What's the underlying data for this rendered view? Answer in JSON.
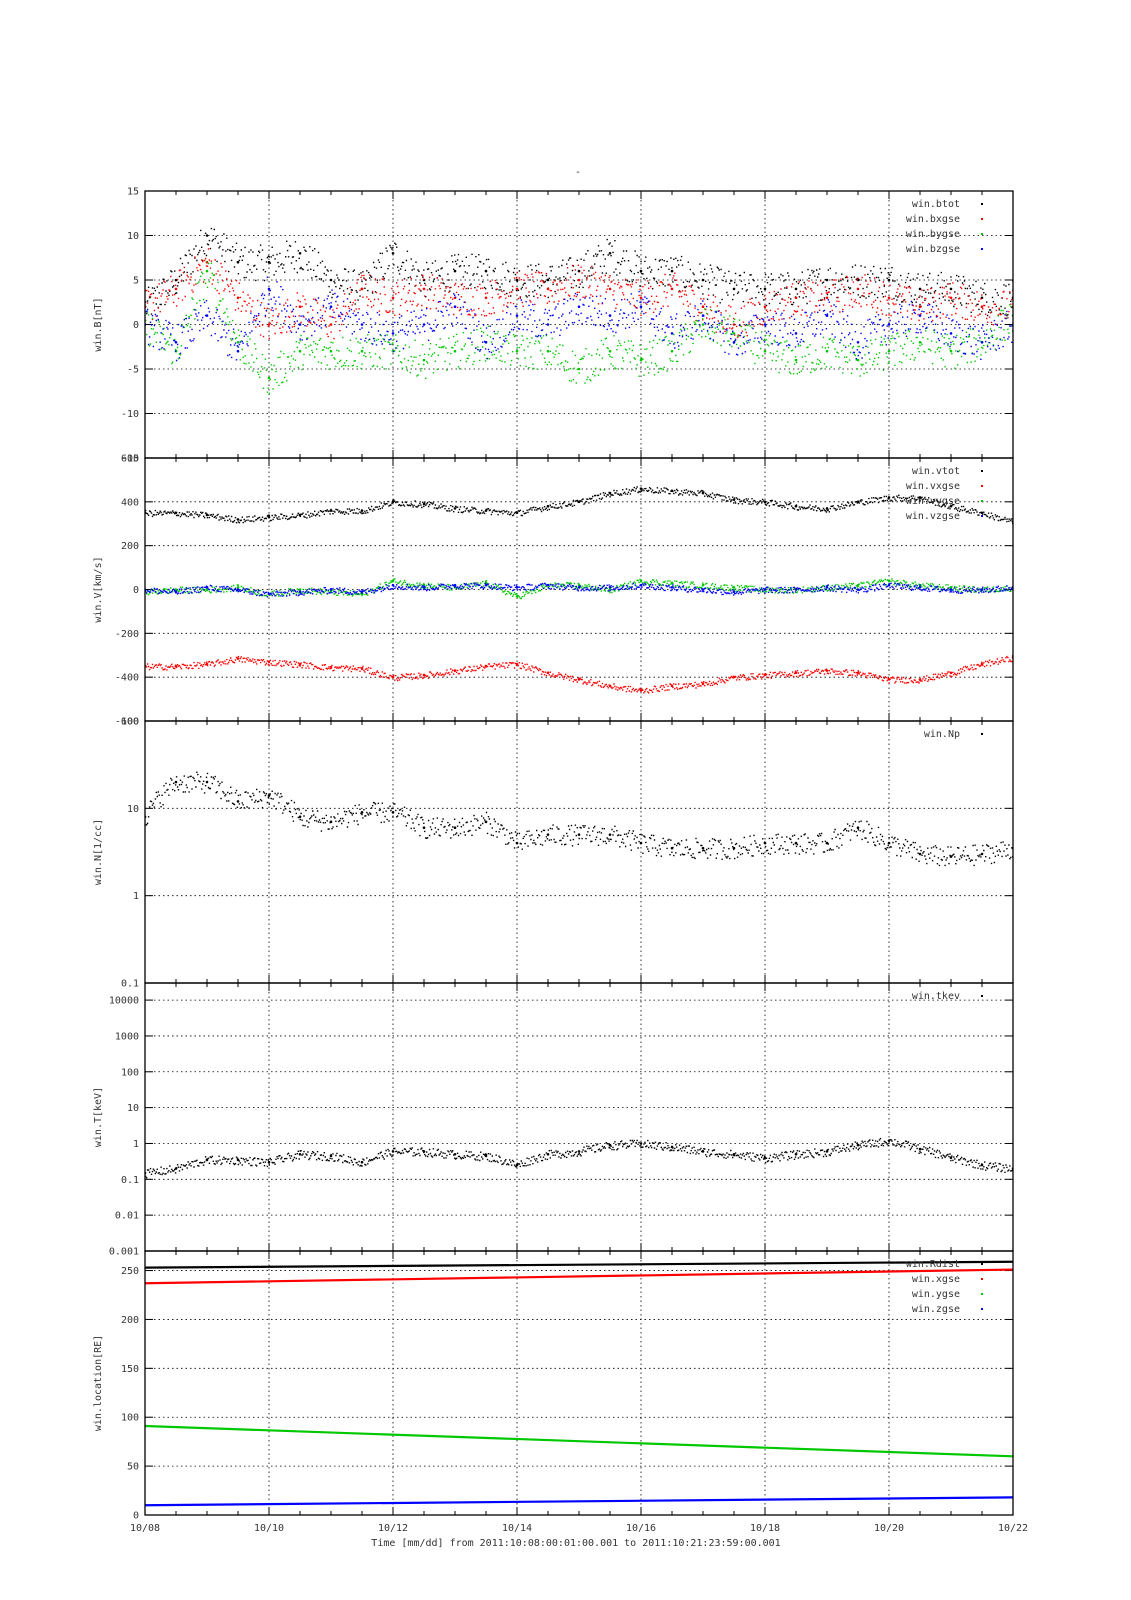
{
  "page_title": "-",
  "time_axis": {
    "tick_labels": [
      "10/08",
      "10/10",
      "10/12",
      "10/14",
      "10/16",
      "10/18",
      "10/20",
      "10/22"
    ],
    "label": "Time [mm/dd]  from 2011:10:08:00:01:00.001  to  2011:10:21:23:59:00.001"
  },
  "chart_data": [
    {
      "type": "scatter",
      "ylabel": "win.B[nT]",
      "ylim": [
        -15,
        15
      ],
      "yscale": "linear",
      "ytick_values": [
        -15,
        -10,
        -5,
        0,
        5,
        10,
        15
      ],
      "ytick_labels": [
        "-15",
        "-10",
        "-5",
        "0",
        "5",
        "10",
        "15"
      ],
      "x_range": [
        "10/08",
        "10/22"
      ],
      "grid": true,
      "legend_position": "top-right",
      "series": [
        {
          "name": "win.btot",
          "color": "#000000",
          "x": [
            0,
            0.5,
            1,
            1.5,
            2,
            2.5,
            3,
            3.5,
            4,
            4.5,
            5,
            5.5,
            6,
            6.5,
            7,
            7.5,
            8,
            8.5,
            9,
            9.5,
            10,
            10.5,
            11,
            11.5,
            12,
            12.5,
            13,
            13.5,
            14
          ],
          "y": [
            2,
            5,
            10,
            7,
            7,
            8,
            5,
            4,
            8,
            5,
            6,
            6,
            5,
            5,
            6,
            8,
            6,
            6,
            5,
            4,
            4,
            4,
            5,
            5,
            5,
            4,
            4,
            3,
            3
          ]
        },
        {
          "name": "win.bxgse",
          "color": "#ff0000",
          "x": [
            0,
            0.5,
            1,
            1.5,
            2,
            2.5,
            3,
            3.5,
            4,
            4.5,
            5,
            5.5,
            6,
            6.5,
            7,
            7.5,
            8,
            8.5,
            9,
            9.5,
            10,
            10.5,
            11,
            11.5,
            12,
            12.5,
            13,
            13.5,
            14
          ],
          "y": [
            2,
            4,
            7,
            3,
            0,
            2,
            0,
            4,
            3,
            4,
            3,
            3,
            4,
            4,
            5,
            4,
            3,
            4,
            2,
            0,
            2,
            3,
            3,
            4,
            3,
            2,
            3,
            2,
            2
          ]
        },
        {
          "name": "win.bygse",
          "color": "#00c800",
          "x": [
            0,
            0.5,
            1,
            1.5,
            2,
            2.5,
            3,
            3.5,
            4,
            4.5,
            5,
            5.5,
            6,
            6.5,
            7,
            7.5,
            8,
            8.5,
            9,
            9.5,
            10,
            10.5,
            11,
            11.5,
            12,
            12.5,
            13,
            13.5,
            14
          ],
          "y": [
            0,
            -3,
            6,
            -2,
            -6,
            -3,
            -3,
            -3,
            -3,
            -4,
            -3,
            -2,
            -3,
            -3,
            -5,
            -3,
            -4,
            -3,
            0,
            -1,
            -3,
            -4,
            -3,
            -4,
            -3,
            -2,
            -3,
            -2,
            1
          ]
        },
        {
          "name": "win.bzgse",
          "color": "#0000ff",
          "x": [
            0,
            0.5,
            1,
            1.5,
            2,
            2.5,
            3,
            3.5,
            4,
            4.5,
            5,
            5.5,
            6,
            6.5,
            7,
            7.5,
            8,
            8.5,
            9,
            9.5,
            10,
            10.5,
            11,
            11.5,
            12,
            12.5,
            13,
            13.5,
            14
          ],
          "y": [
            0,
            -2,
            1,
            -3,
            4,
            0,
            2,
            0,
            -1,
            0,
            2,
            -2,
            1,
            0,
            2,
            1,
            2,
            -1,
            1,
            -2,
            0,
            -1,
            1,
            -2,
            0,
            1,
            -1,
            -2,
            0
          ]
        }
      ]
    },
    {
      "type": "scatter",
      "ylabel": "win.V[km/s]",
      "ylim": [
        -600,
        600
      ],
      "yscale": "linear",
      "ytick_values": [
        -600,
        -400,
        -200,
        0,
        200,
        400,
        600
      ],
      "ytick_labels": [
        "-600",
        "-400",
        "-200",
        "0",
        "200",
        "400",
        "600"
      ],
      "x_range": [
        "10/08",
        "10/22"
      ],
      "grid": true,
      "legend_position": "top-right",
      "series": [
        {
          "name": "win.vtot",
          "color": "#000000",
          "x": [
            0,
            0.5,
            1,
            1.5,
            2,
            2.5,
            3,
            3.5,
            4,
            4.5,
            5,
            5.5,
            6,
            6.5,
            7,
            7.5,
            8,
            8.5,
            9,
            9.5,
            10,
            10.5,
            11,
            11.5,
            12,
            12.5,
            13,
            13.5,
            14
          ],
          "y": [
            350,
            350,
            340,
            320,
            330,
            340,
            360,
            360,
            400,
            390,
            370,
            360,
            350,
            380,
            400,
            440,
            460,
            450,
            440,
            410,
            400,
            380,
            370,
            400,
            420,
            420,
            380,
            350,
            310
          ]
        },
        {
          "name": "win.vxgse",
          "color": "#ff0000",
          "x": [
            0,
            0.5,
            1,
            1.5,
            2,
            2.5,
            3,
            3.5,
            4,
            4.5,
            5,
            5.5,
            6,
            6.5,
            7,
            7.5,
            8,
            8.5,
            9,
            9.5,
            10,
            10.5,
            11,
            11.5,
            12,
            12.5,
            13,
            13.5,
            14
          ],
          "y": [
            -350,
            -350,
            -340,
            -315,
            -330,
            -340,
            -355,
            -360,
            -400,
            -390,
            -370,
            -350,
            -340,
            -380,
            -410,
            -440,
            -460,
            -440,
            -430,
            -400,
            -390,
            -380,
            -370,
            -380,
            -410,
            -410,
            -380,
            -340,
            -310
          ]
        },
        {
          "name": "win.vygse",
          "color": "#00c800",
          "x": [
            0,
            0.5,
            1,
            1.5,
            2,
            2.5,
            3,
            3.5,
            4,
            4.5,
            5,
            5.5,
            6,
            6.5,
            7,
            7.5,
            8,
            8.5,
            9,
            9.5,
            10,
            10.5,
            11,
            11.5,
            12,
            12.5,
            13,
            13.5,
            14
          ],
          "y": [
            -10,
            0,
            0,
            10,
            -20,
            0,
            -10,
            -20,
            40,
            20,
            10,
            30,
            -30,
            20,
            20,
            0,
            40,
            30,
            20,
            10,
            0,
            0,
            10,
            20,
            40,
            20,
            10,
            0,
            10
          ]
        },
        {
          "name": "win.vzgse",
          "color": "#0000ff",
          "x": [
            0,
            0.5,
            1,
            1.5,
            2,
            2.5,
            3,
            3.5,
            4,
            4.5,
            5,
            5.5,
            6,
            6.5,
            7,
            7.5,
            8,
            8.5,
            9,
            9.5,
            10,
            10.5,
            11,
            11.5,
            12,
            12.5,
            13,
            13.5,
            14
          ],
          "y": [
            0,
            -10,
            10,
            0,
            -20,
            -10,
            0,
            -10,
            20,
            10,
            20,
            20,
            10,
            20,
            10,
            10,
            20,
            10,
            0,
            -10,
            0,
            0,
            10,
            0,
            20,
            10,
            0,
            0,
            10
          ]
        }
      ]
    },
    {
      "type": "scatter",
      "ylabel": "win.N[1/cc]",
      "ylim": [
        0.1,
        100
      ],
      "yscale": "log",
      "ytick_values": [
        0.1,
        1,
        10,
        100
      ],
      "ytick_labels": [
        "0.1",
        "1",
        "10",
        "100"
      ],
      "x_range": [
        "10/08",
        "10/22"
      ],
      "grid": true,
      "legend_position": "top-right",
      "series": [
        {
          "name": "win.Np",
          "color": "#000000",
          "x": [
            0,
            0.5,
            1,
            1.5,
            2,
            2.5,
            3,
            3.5,
            4,
            4.5,
            5,
            5.5,
            6,
            6.5,
            7,
            7.5,
            8,
            8.5,
            9,
            9.5,
            10,
            10.5,
            11,
            11.5,
            12,
            12.5,
            13,
            13.5,
            14
          ],
          "y": [
            8,
            20,
            20,
            12,
            14,
            8,
            7,
            9,
            9,
            6,
            6,
            7,
            4,
            5,
            5,
            5,
            4,
            3.5,
            3.5,
            3.5,
            4,
            4,
            4,
            6,
            4,
            3,
            2.8,
            3,
            3.5
          ]
        }
      ]
    },
    {
      "type": "scatter",
      "ylabel": "win.T[keV]",
      "ylim": [
        0.001,
        30000
      ],
      "yscale": "log",
      "ytick_values": [
        0.001,
        0.01,
        0.1,
        1,
        10,
        100,
        1000,
        10000
      ],
      "ytick_labels": [
        "0.001",
        "0.01",
        "0.1",
        "1",
        "10",
        "100",
        "1000",
        "10000"
      ],
      "x_range": [
        "10/08",
        "10/22"
      ],
      "grid": true,
      "legend_position": "top-right",
      "series": [
        {
          "name": "win.tkev",
          "color": "#000000",
          "x": [
            0,
            0.5,
            1,
            1.5,
            2,
            2.5,
            3,
            3.5,
            4,
            4.5,
            5,
            5.5,
            6,
            6.5,
            7,
            7.5,
            8,
            8.5,
            9,
            9.5,
            10,
            10.5,
            11,
            11.5,
            12,
            12.5,
            13,
            13.5,
            14
          ],
          "y": [
            0.15,
            0.2,
            0.35,
            0.35,
            0.3,
            0.5,
            0.45,
            0.3,
            0.6,
            0.6,
            0.5,
            0.45,
            0.25,
            0.5,
            0.6,
            0.9,
            1.0,
            0.8,
            0.6,
            0.5,
            0.4,
            0.5,
            0.6,
            0.9,
            1.2,
            0.7,
            0.4,
            0.25,
            0.2
          ]
        }
      ]
    },
    {
      "type": "scatter",
      "ylabel": "win.location[RE]",
      "ylim": [
        0,
        270
      ],
      "yscale": "linear",
      "ytick_values": [
        0,
        50,
        100,
        150,
        200,
        250
      ],
      "ytick_labels": [
        "0",
        "50",
        "100",
        "150",
        "200",
        "250"
      ],
      "x_range": [
        "10/08",
        "10/22"
      ],
      "grid": true,
      "legend_position": "top-right",
      "series": [
        {
          "name": "win.Rdist",
          "color": "#000000",
          "x": [
            0,
            14
          ],
          "y": [
            253,
            259
          ]
        },
        {
          "name": "win.xgse",
          "color": "#ff0000",
          "x": [
            0,
            14
          ],
          "y": [
            237,
            251
          ]
        },
        {
          "name": "win.ygse",
          "color": "#00c800",
          "x": [
            0,
            14
          ],
          "y": [
            91,
            60
          ]
        },
        {
          "name": "win.zgse",
          "color": "#0000ff",
          "x": [
            0,
            14
          ],
          "y": [
            10,
            18
          ]
        }
      ]
    }
  ]
}
